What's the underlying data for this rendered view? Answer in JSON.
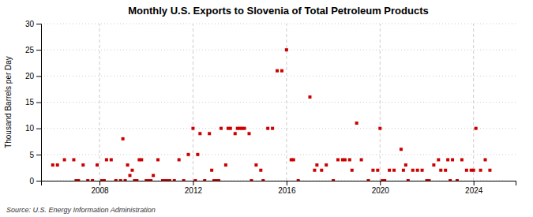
{
  "chart_data": {
    "type": "scatter",
    "title": "Monthly U.S. Exports to Slovenia of Total Petroleum Products",
    "y_label": "Thousand Barrels per Day",
    "annotations": [
      "Source: U.S. Energy Information Administration"
    ],
    "color": "#cc0000",
    "marker": "square",
    "grid": true,
    "xlim": [
      2005.5,
      2025.8
    ],
    "xticks": [
      2008,
      2012,
      2016,
      2020,
      2024
    ],
    "ylim": [
      0,
      30
    ],
    "yticks": [
      0,
      5,
      10,
      15,
      20,
      25,
      30
    ],
    "x": [
      2006.0,
      2006.2,
      2006.5,
      2006.9,
      2007.0,
      2007.1,
      2007.3,
      2007.5,
      2007.7,
      2007.9,
      2008.1,
      2008.2,
      2008.3,
      2008.5,
      2008.7,
      2008.9,
      2009.0,
      2009.1,
      2009.2,
      2009.3,
      2009.4,
      2009.5,
      2009.6,
      2009.7,
      2009.8,
      2010.0,
      2010.1,
      2010.2,
      2010.3,
      2010.5,
      2010.7,
      2010.8,
      2010.9,
      2011.0,
      2011.2,
      2011.4,
      2011.6,
      2011.8,
      2012.0,
      2012.1,
      2012.2,
      2012.3,
      2012.5,
      2012.7,
      2012.8,
      2012.9,
      2013.0,
      2013.1,
      2013.2,
      2013.4,
      2013.5,
      2013.6,
      2013.8,
      2013.9,
      2014.0,
      2014.1,
      2014.2,
      2014.4,
      2014.5,
      2014.7,
      2014.9,
      2015.0,
      2015.2,
      2015.4,
      2015.6,
      2015.8,
      2016.0,
      2016.2,
      2016.3,
      2016.5,
      2017.0,
      2017.2,
      2017.3,
      2017.5,
      2017.7,
      2018.0,
      2018.2,
      2018.4,
      2018.5,
      2018.7,
      2018.8,
      2019.0,
      2019.2,
      2019.5,
      2019.7,
      2019.9,
      2020.0,
      2020.1,
      2020.2,
      2020.4,
      2020.6,
      2020.9,
      2021.0,
      2021.1,
      2021.2,
      2021.4,
      2021.6,
      2021.8,
      2022.0,
      2022.1,
      2022.3,
      2022.5,
      2022.6,
      2022.8,
      2022.9,
      2023.0,
      2023.1,
      2023.3,
      2023.5,
      2023.7,
      2023.9,
      2024.0,
      2024.1,
      2024.3,
      2024.5,
      2024.7
    ],
    "values": [
      3,
      3,
      4,
      4,
      0,
      0,
      3,
      0,
      0,
      3,
      0,
      0,
      4,
      4,
      0,
      0,
      8,
      0,
      3,
      1,
      2,
      0,
      0,
      4,
      4,
      0,
      0,
      0,
      1,
      4,
      0,
      0,
      0,
      0,
      0,
      4,
      0,
      5,
      10,
      0,
      5,
      9,
      0,
      9,
      2,
      0,
      0,
      0,
      10,
      3,
      10,
      10,
      9,
      10,
      10,
      10,
      10,
      9,
      0,
      3,
      2,
      0,
      10,
      10,
      21,
      21,
      25,
      4,
      4,
      0,
      16,
      2,
      3,
      2,
      3,
      0,
      4,
      4,
      4,
      4,
      2,
      11,
      4,
      0,
      2,
      2,
      10,
      0,
      0,
      2,
      2,
      6,
      2,
      3,
      0,
      2,
      2,
      2,
      0,
      0,
      3,
      4,
      2,
      2,
      4,
      0,
      4,
      0,
      4,
      2,
      2,
      2,
      10,
      2,
      4,
      2
    ]
  }
}
